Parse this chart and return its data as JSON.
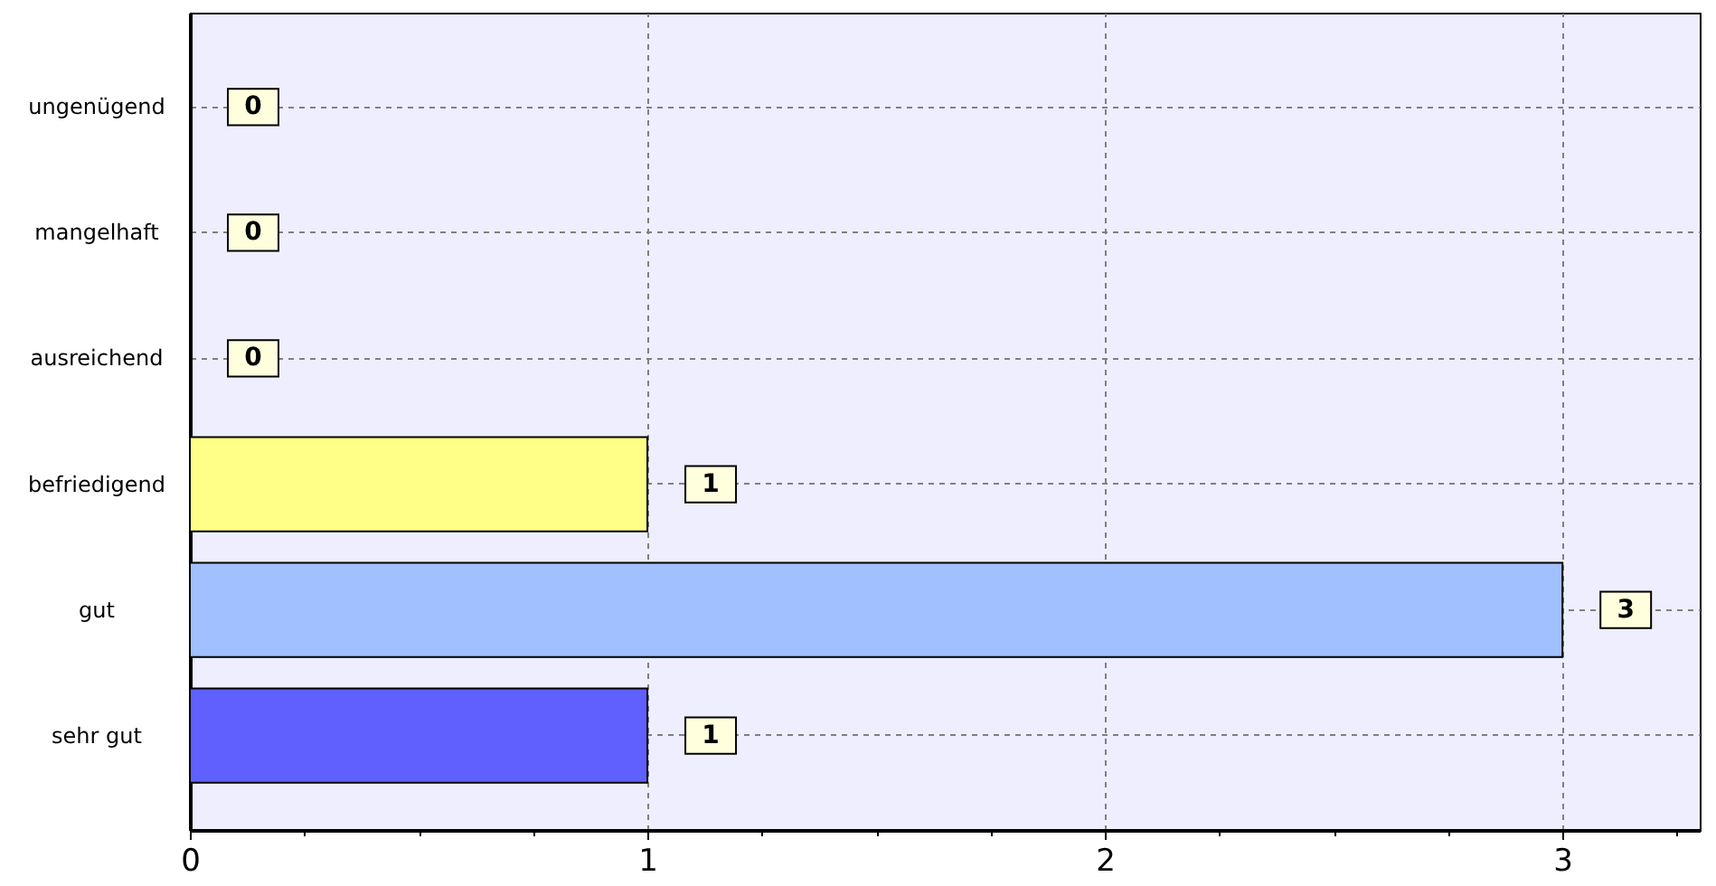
{
  "chart_data": {
    "type": "bar",
    "orientation": "horizontal",
    "categories": [
      "ungenügend",
      "mangelhaft",
      "ausreichend",
      "befriedigend",
      "gut",
      "sehr gut"
    ],
    "values": [
      0,
      0,
      0,
      1,
      3,
      1
    ],
    "colors": [
      null,
      null,
      null,
      "#ffff88",
      "#a0c0ff",
      "#6060ff"
    ],
    "xlim": [
      0,
      3.3
    ],
    "xticks": [
      0,
      {
        "value": 0.25,
        "label": null
      },
      {
        "value": 0.5,
        "label": null
      },
      {
        "value": 0.75,
        "label": null
      },
      1,
      {
        "value": 1.25,
        "label": null
      },
      {
        "value": 1.5,
        "label": null
      },
      {
        "value": 1.75,
        "label": null
      },
      2,
      {
        "value": 2.25,
        "label": null
      },
      {
        "value": 2.5,
        "label": null
      },
      {
        "value": 2.75,
        "label": null
      },
      3,
      {
        "value": 3.25,
        "label": null
      }
    ],
    "grid": true,
    "data_labels": true
  }
}
